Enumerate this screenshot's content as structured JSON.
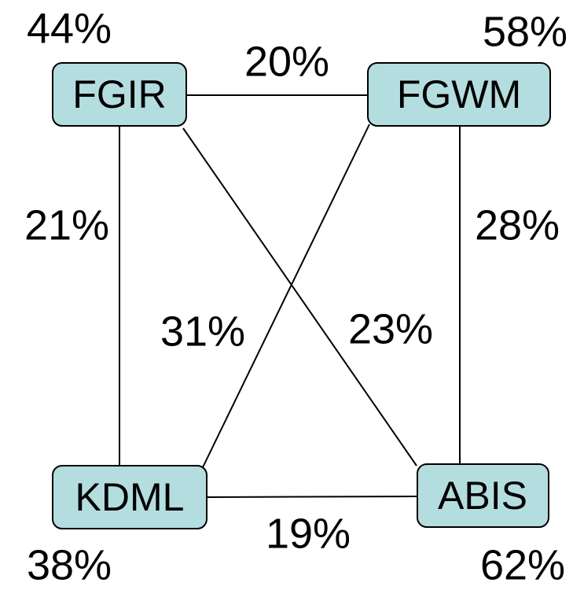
{
  "nodes": [
    {
      "label": "FGIR",
      "percent": "44%"
    },
    {
      "label": "FGWM",
      "percent": "58%"
    },
    {
      "label": "KDML",
      "percent": "38%"
    },
    {
      "label": "ABIS",
      "percent": "62%"
    }
  ],
  "edges": [
    {
      "label": "20%"
    },
    {
      "label": "21%"
    },
    {
      "label": "28%"
    },
    {
      "label": "19%"
    },
    {
      "label": "23%"
    },
    {
      "label": "31%"
    }
  ]
}
